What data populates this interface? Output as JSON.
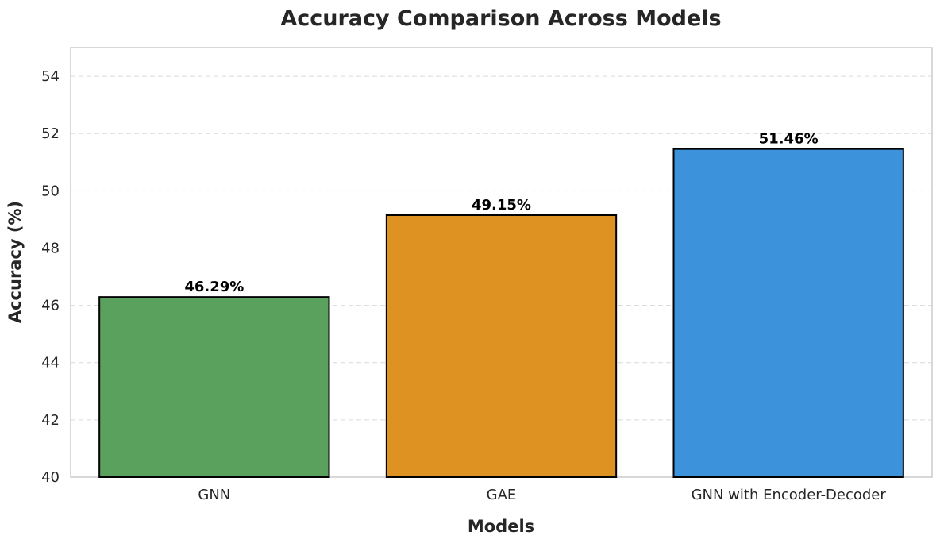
{
  "chart_data": {
    "type": "bar",
    "title": "Accuracy Comparison Across Models",
    "xlabel": "Models",
    "ylabel": "Accuracy (%)",
    "categories": [
      "GNN",
      "GAE",
      "GNN with Encoder-Decoder"
    ],
    "values": [
      46.29,
      49.15,
      51.46
    ],
    "data_labels": [
      "46.29%",
      "49.15%",
      "51.46%"
    ],
    "colors": [
      "#59a15c",
      "#de9222",
      "#3c92db"
    ],
    "ylim": [
      40,
      55
    ],
    "yticks": [
      40,
      42,
      44,
      46,
      48,
      50,
      52,
      54
    ],
    "grid": "y-dashed",
    "legend": "none"
  }
}
